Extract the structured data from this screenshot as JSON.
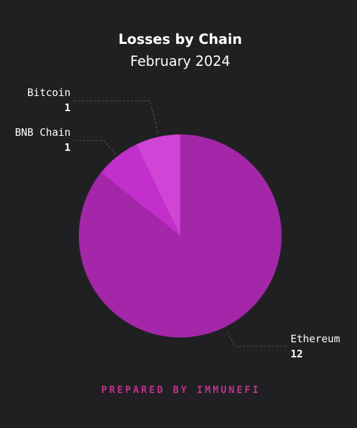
{
  "chart_data": {
    "type": "pie",
    "title": "Losses by Chain",
    "subtitle": "February 2024",
    "slices": [
      {
        "label": "Ethereum",
        "value": 12,
        "value_label": "12",
        "color": "#a327a8"
      },
      {
        "label": "BNB Chain",
        "value": 1,
        "value_label": "1",
        "color": "#c22fcb"
      },
      {
        "label": "Bitcoin",
        "value": 1,
        "value_label": "1",
        "color": "#d044d6"
      }
    ],
    "start_angle_deg": 0,
    "direction": "clockwise",
    "legend": "none",
    "background": "#202022"
  },
  "footer": {
    "text": "PREPARED BY IMMUNEFI",
    "color": "#c4308f"
  }
}
